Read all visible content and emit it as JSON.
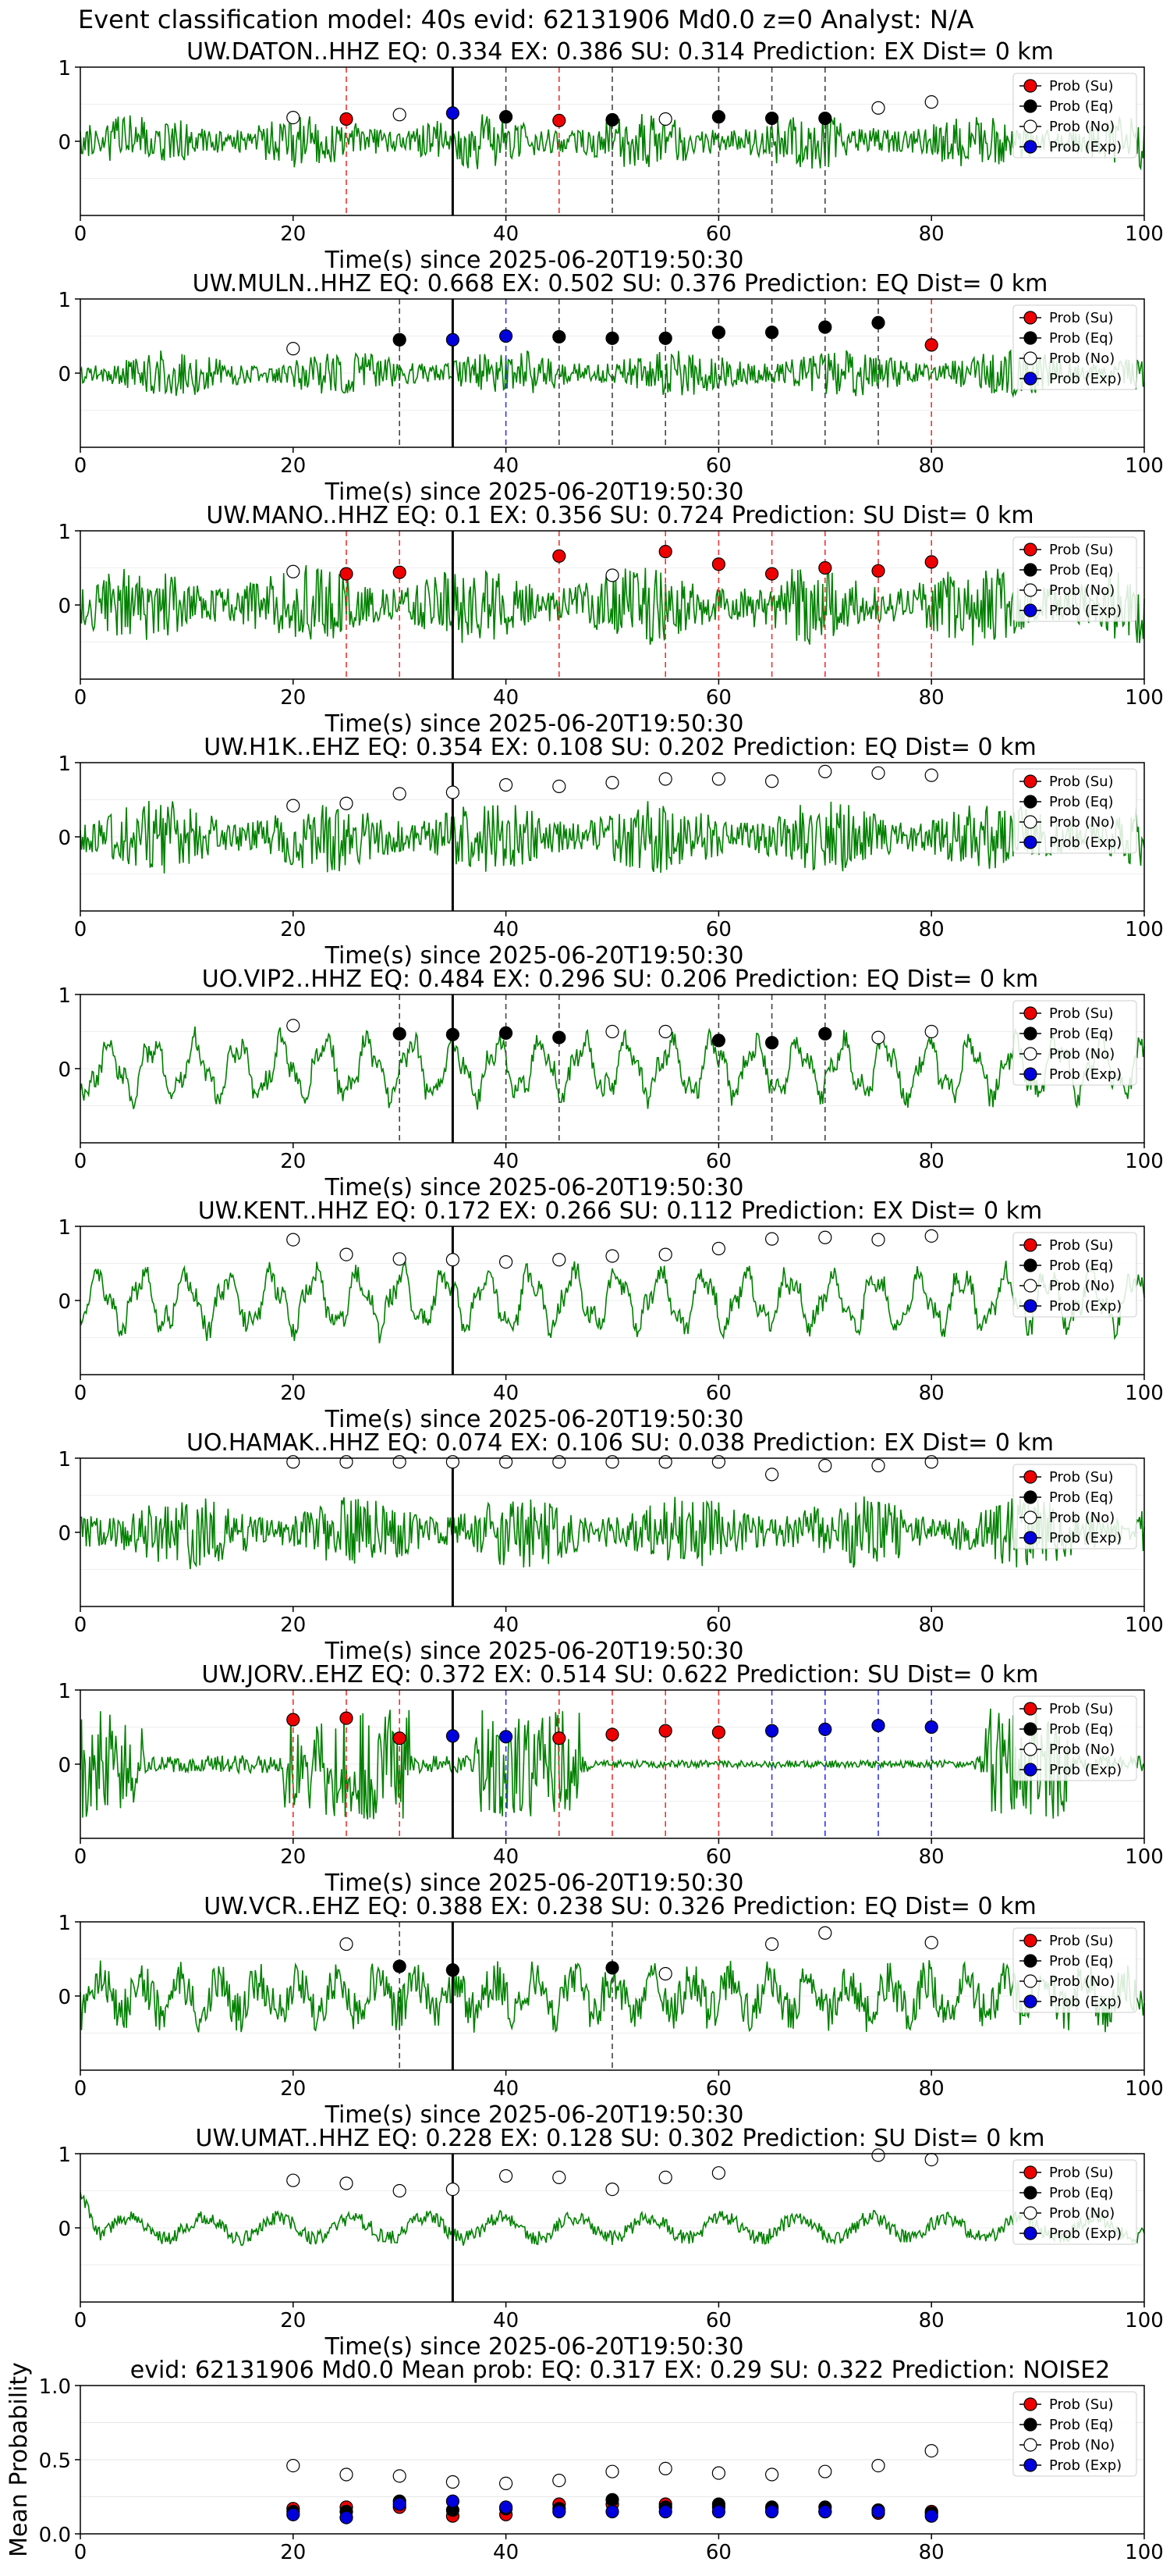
{
  "suptitle": "Event classification model: 40s evid: 62131906 Md0.0 z=0 Analyst: N/A",
  "colors": {
    "su": "#ee0000",
    "eq": "#000000",
    "no": "#ffffff",
    "exp": "#0000dd",
    "trace": "#008000",
    "hline": "#000000"
  },
  "legend_labels": [
    "Prob (Su)",
    "Prob (Eq)",
    "Prob (No)",
    "Prob (Exp)"
  ],
  "chart_data": [
    {
      "type": "line",
      "station": "UW.DATON..HHZ",
      "title": "UW.DATON..HHZ   EQ: 0.334  EX: 0.386  SU: 0.314   Prediction: EX    Dist= 0 km",
      "xlabel": "Time(s) since 2025-06-20T19:50:30",
      "xlim": [
        0,
        100
      ],
      "ylim": [
        -1,
        1
      ],
      "xticks": [
        "0",
        "20",
        "40",
        "60",
        "80",
        "100"
      ],
      "yticks": [
        "1",
        "0"
      ],
      "trace_style": "hf",
      "amp": 0.38,
      "seed": 11,
      "event_line": 35,
      "points": [
        {
          "t": 20,
          "p": 0.32,
          "c": "no"
        },
        {
          "t": 25,
          "p": 0.3,
          "c": "su"
        },
        {
          "t": 30,
          "p": 0.36,
          "c": "no"
        },
        {
          "t": 35,
          "p": 0.38,
          "c": "exp"
        },
        {
          "t": 40,
          "p": 0.33,
          "c": "eq"
        },
        {
          "t": 45,
          "p": 0.28,
          "c": "su"
        },
        {
          "t": 50,
          "p": 0.29,
          "c": "eq"
        },
        {
          "t": 55,
          "p": 0.3,
          "c": "no"
        },
        {
          "t": 60,
          "p": 0.33,
          "c": "eq"
        },
        {
          "t": 65,
          "p": 0.31,
          "c": "eq"
        },
        {
          "t": 70,
          "p": 0.31,
          "c": "eq"
        },
        {
          "t": 75,
          "p": 0.45,
          "c": "no"
        },
        {
          "t": 80,
          "p": 0.53,
          "c": "no"
        }
      ]
    },
    {
      "type": "line",
      "station": "UW.MULN..HHZ",
      "title": "UW.MULN..HHZ   EQ: 0.668  EX: 0.502  SU: 0.376   Prediction: EQ    Dist= 0 km",
      "xlabel": "Time(s) since 2025-06-20T19:50:30",
      "xlim": [
        0,
        100
      ],
      "ylim": [
        -1,
        1
      ],
      "xticks": [
        "0",
        "20",
        "40",
        "60",
        "80",
        "100"
      ],
      "yticks": [
        "1",
        "0"
      ],
      "trace_style": "hf",
      "amp": 0.32,
      "seed": 23,
      "event_line": 35,
      "points": [
        {
          "t": 20,
          "p": 0.33,
          "c": "no"
        },
        {
          "t": 30,
          "p": 0.45,
          "c": "eq"
        },
        {
          "t": 35,
          "p": 0.45,
          "c": "exp"
        },
        {
          "t": 40,
          "p": 0.5,
          "c": "exp"
        },
        {
          "t": 45,
          "p": 0.49,
          "c": "eq"
        },
        {
          "t": 50,
          "p": 0.47,
          "c": "eq"
        },
        {
          "t": 55,
          "p": 0.47,
          "c": "eq"
        },
        {
          "t": 60,
          "p": 0.55,
          "c": "eq"
        },
        {
          "t": 65,
          "p": 0.55,
          "c": "eq"
        },
        {
          "t": 70,
          "p": 0.62,
          "c": "eq"
        },
        {
          "t": 75,
          "p": 0.68,
          "c": "eq"
        },
        {
          "t": 80,
          "p": 0.38,
          "c": "su"
        }
      ]
    },
    {
      "type": "line",
      "station": "UW.MANO..HHZ",
      "title": "UW.MANO..HHZ   EQ: 0.1  EX: 0.356  SU: 0.724   Prediction: SU    Dist= 0 km",
      "xlabel": "Time(s) since 2025-06-20T19:50:30",
      "xlim": [
        0,
        100
      ],
      "ylim": [
        -1,
        1
      ],
      "xticks": [
        "0",
        "20",
        "40",
        "60",
        "80",
        "100"
      ],
      "yticks": [
        "1",
        "0"
      ],
      "trace_style": "hf",
      "amp": 0.55,
      "seed": 37,
      "event_line": 35,
      "points": [
        {
          "t": 20,
          "p": 0.45,
          "c": "no"
        },
        {
          "t": 25,
          "p": 0.42,
          "c": "su"
        },
        {
          "t": 30,
          "p": 0.44,
          "c": "su"
        },
        {
          "t": 45,
          "p": 0.66,
          "c": "su"
        },
        {
          "t": 50,
          "p": 0.4,
          "c": "no"
        },
        {
          "t": 55,
          "p": 0.72,
          "c": "su"
        },
        {
          "t": 60,
          "p": 0.55,
          "c": "su"
        },
        {
          "t": 65,
          "p": 0.42,
          "c": "su"
        },
        {
          "t": 70,
          "p": 0.5,
          "c": "su"
        },
        {
          "t": 75,
          "p": 0.46,
          "c": "su"
        },
        {
          "t": 80,
          "p": 0.58,
          "c": "su"
        }
      ]
    },
    {
      "type": "line",
      "station": "UW.H1K..EHZ",
      "title": "UW.H1K..EHZ   EQ: 0.354  EX: 0.108  SU: 0.202   Prediction: EQ    Dist= 0 km",
      "xlabel": "Time(s) since 2025-06-20T19:50:30",
      "xlim": [
        0,
        100
      ],
      "ylim": [
        -1,
        1
      ],
      "xticks": [
        "0",
        "20",
        "40",
        "60",
        "80",
        "100"
      ],
      "yticks": [
        "1",
        "0"
      ],
      "trace_style": "hf",
      "amp": 0.5,
      "seed": 41,
      "event_line": 35,
      "points": [
        {
          "t": 20,
          "p": 0.42,
          "c": "no"
        },
        {
          "t": 25,
          "p": 0.45,
          "c": "no"
        },
        {
          "t": 30,
          "p": 0.58,
          "c": "no"
        },
        {
          "t": 35,
          "p": 0.6,
          "c": "no"
        },
        {
          "t": 40,
          "p": 0.7,
          "c": "no"
        },
        {
          "t": 45,
          "p": 0.68,
          "c": "no"
        },
        {
          "t": 50,
          "p": 0.73,
          "c": "no"
        },
        {
          "t": 55,
          "p": 0.78,
          "c": "no"
        },
        {
          "t": 60,
          "p": 0.78,
          "c": "no"
        },
        {
          "t": 65,
          "p": 0.75,
          "c": "no"
        },
        {
          "t": 70,
          "p": 0.88,
          "c": "no"
        },
        {
          "t": 75,
          "p": 0.86,
          "c": "no"
        },
        {
          "t": 80,
          "p": 0.83,
          "c": "no"
        }
      ]
    },
    {
      "type": "line",
      "station": "UO.VIP2..HHZ",
      "title": "UO.VIP2..HHZ   EQ: 0.484  EX: 0.296  SU: 0.206   Prediction: EQ    Dist= 0 km",
      "xlabel": "Time(s) since 2025-06-20T19:50:30",
      "xlim": [
        0,
        100
      ],
      "ylim": [
        -1,
        1
      ],
      "xticks": [
        "0",
        "20",
        "40",
        "60",
        "80",
        "100"
      ],
      "yticks": [
        "1",
        "0"
      ],
      "trace_style": "lf",
      "amp": 0.55,
      "seed": 53,
      "event_line": 35,
      "points": [
        {
          "t": 20,
          "p": 0.58,
          "c": "no"
        },
        {
          "t": 30,
          "p": 0.47,
          "c": "eq"
        },
        {
          "t": 35,
          "p": 0.46,
          "c": "eq"
        },
        {
          "t": 40,
          "p": 0.48,
          "c": "eq"
        },
        {
          "t": 45,
          "p": 0.42,
          "c": "eq"
        },
        {
          "t": 50,
          "p": 0.5,
          "c": "no"
        },
        {
          "t": 55,
          "p": 0.5,
          "c": "no"
        },
        {
          "t": 60,
          "p": 0.38,
          "c": "eq"
        },
        {
          "t": 65,
          "p": 0.35,
          "c": "eq"
        },
        {
          "t": 70,
          "p": 0.47,
          "c": "eq"
        },
        {
          "t": 75,
          "p": 0.42,
          "c": "no"
        },
        {
          "t": 80,
          "p": 0.5,
          "c": "no"
        }
      ]
    },
    {
      "type": "line",
      "station": "UW.KENT..HHZ",
      "title": "UW.KENT..HHZ   EQ: 0.172  EX: 0.266  SU: 0.112   Prediction: EX    Dist= 0 km",
      "xlabel": "Time(s) since 2025-06-20T19:50:30",
      "xlim": [
        0,
        100
      ],
      "ylim": [
        -1,
        1
      ],
      "xticks": [
        "0",
        "20",
        "40",
        "60",
        "80",
        "100"
      ],
      "yticks": [
        "1",
        "0"
      ],
      "trace_style": "lf",
      "amp": 0.55,
      "seed": 67,
      "event_line": 35,
      "points": [
        {
          "t": 20,
          "p": 0.82,
          "c": "no"
        },
        {
          "t": 25,
          "p": 0.62,
          "c": "no"
        },
        {
          "t": 30,
          "p": 0.56,
          "c": "no"
        },
        {
          "t": 35,
          "p": 0.55,
          "c": "no"
        },
        {
          "t": 40,
          "p": 0.52,
          "c": "no"
        },
        {
          "t": 45,
          "p": 0.55,
          "c": "no"
        },
        {
          "t": 50,
          "p": 0.6,
          "c": "no"
        },
        {
          "t": 55,
          "p": 0.62,
          "c": "no"
        },
        {
          "t": 60,
          "p": 0.7,
          "c": "no"
        },
        {
          "t": 65,
          "p": 0.83,
          "c": "no"
        },
        {
          "t": 70,
          "p": 0.85,
          "c": "no"
        },
        {
          "t": 75,
          "p": 0.82,
          "c": "no"
        },
        {
          "t": 80,
          "p": 0.87,
          "c": "no"
        }
      ]
    },
    {
      "type": "line",
      "station": "UO.HAMAK..HHZ",
      "title": "UO.HAMAK..HHZ   EQ: 0.074  EX: 0.106  SU: 0.038   Prediction: EX    Dist= 0 km",
      "xlabel": "Time(s) since 2025-06-20T19:50:30",
      "xlim": [
        0,
        100
      ],
      "ylim": [
        -1,
        1
      ],
      "xticks": [
        "0",
        "20",
        "40",
        "60",
        "80",
        "100"
      ],
      "yticks": [
        "1",
        "0"
      ],
      "trace_style": "hf",
      "amp": 0.5,
      "seed": 79,
      "event_line": 35,
      "points": [
        {
          "t": 20,
          "p": 0.95,
          "c": "no"
        },
        {
          "t": 25,
          "p": 0.95,
          "c": "no"
        },
        {
          "t": 30,
          "p": 0.95,
          "c": "no"
        },
        {
          "t": 35,
          "p": 0.95,
          "c": "no"
        },
        {
          "t": 40,
          "p": 0.95,
          "c": "no"
        },
        {
          "t": 45,
          "p": 0.95,
          "c": "no"
        },
        {
          "t": 50,
          "p": 0.95,
          "c": "no"
        },
        {
          "t": 55,
          "p": 0.95,
          "c": "no"
        },
        {
          "t": 60,
          "p": 0.95,
          "c": "no"
        },
        {
          "t": 65,
          "p": 0.78,
          "c": "no"
        },
        {
          "t": 70,
          "p": 0.9,
          "c": "no"
        },
        {
          "t": 75,
          "p": 0.9,
          "c": "no"
        },
        {
          "t": 80,
          "p": 0.95,
          "c": "no"
        }
      ]
    },
    {
      "type": "line",
      "station": "UW.JORV..EHZ",
      "title": "UW.JORV..EHZ   EQ: 0.372  EX: 0.514  SU: 0.622   Prediction: SU    Dist= 0 km",
      "xlabel": "Time(s) since 2025-06-20T19:50:30",
      "xlim": [
        0,
        100
      ],
      "ylim": [
        -1,
        1
      ],
      "xticks": [
        "0",
        "20",
        "40",
        "60",
        "80",
        "100"
      ],
      "yticks": [
        "1",
        "0"
      ],
      "trace_style": "burst",
      "amp": 0.6,
      "seed": 83,
      "event_line": 35,
      "points": [
        {
          "t": 20,
          "p": 0.6,
          "c": "su"
        },
        {
          "t": 25,
          "p": 0.62,
          "c": "su"
        },
        {
          "t": 30,
          "p": 0.35,
          "c": "su"
        },
        {
          "t": 35,
          "p": 0.38,
          "c": "exp"
        },
        {
          "t": 40,
          "p": 0.37,
          "c": "exp"
        },
        {
          "t": 45,
          "p": 0.35,
          "c": "su"
        },
        {
          "t": 50,
          "p": 0.4,
          "c": "su"
        },
        {
          "t": 55,
          "p": 0.45,
          "c": "su"
        },
        {
          "t": 60,
          "p": 0.43,
          "c": "su"
        },
        {
          "t": 65,
          "p": 0.45,
          "c": "exp"
        },
        {
          "t": 70,
          "p": 0.47,
          "c": "exp"
        },
        {
          "t": 75,
          "p": 0.52,
          "c": "exp"
        },
        {
          "t": 80,
          "p": 0.5,
          "c": "exp"
        }
      ]
    },
    {
      "type": "line",
      "station": "UW.VCR..EHZ",
      "title": "UW.VCR..EHZ   EQ: 0.388  EX: 0.238  SU: 0.326   Prediction: EQ    Dist= 0 km",
      "xlabel": "Time(s) since 2025-06-20T19:50:30",
      "xlim": [
        0,
        100
      ],
      "ylim": [
        -1,
        1
      ],
      "xticks": [
        "0",
        "20",
        "40",
        "60",
        "80",
        "100"
      ],
      "yticks": [
        "1",
        "0"
      ],
      "trace_style": "mixed",
      "amp": 0.45,
      "seed": 97,
      "event_line": 35,
      "points": [
        {
          "t": 25,
          "p": 0.7,
          "c": "no"
        },
        {
          "t": 30,
          "p": 0.4,
          "c": "eq"
        },
        {
          "t": 35,
          "p": 0.35,
          "c": "eq"
        },
        {
          "t": 50,
          "p": 0.38,
          "c": "eq"
        },
        {
          "t": 55,
          "p": 0.3,
          "c": "no"
        },
        {
          "t": 65,
          "p": 0.7,
          "c": "no"
        },
        {
          "t": 70,
          "p": 0.85,
          "c": "no"
        },
        {
          "t": 80,
          "p": 0.72,
          "c": "no"
        }
      ]
    },
    {
      "type": "line",
      "station": "UW.UMAT..HHZ",
      "title": "UW.UMAT..HHZ   EQ: 0.228  EX: 0.128  SU: 0.302   Prediction: SU    Dist= 0 km",
      "xlabel": "Time(s) since 2025-06-20T19:50:30",
      "xlim": [
        0,
        100
      ],
      "ylim": [
        -1,
        1
      ],
      "xticks": [
        "0",
        "20",
        "40",
        "60",
        "80",
        "100"
      ],
      "yticks": [
        "1",
        "0"
      ],
      "trace_style": "quiet",
      "amp": 0.16,
      "seed": 101,
      "event_line": 35,
      "points": [
        {
          "t": 20,
          "p": 0.64,
          "c": "no"
        },
        {
          "t": 25,
          "p": 0.6,
          "c": "no"
        },
        {
          "t": 30,
          "p": 0.5,
          "c": "no"
        },
        {
          "t": 35,
          "p": 0.52,
          "c": "no"
        },
        {
          "t": 40,
          "p": 0.7,
          "c": "no"
        },
        {
          "t": 45,
          "p": 0.68,
          "c": "no"
        },
        {
          "t": 50,
          "p": 0.52,
          "c": "no"
        },
        {
          "t": 55,
          "p": 0.68,
          "c": "no"
        },
        {
          "t": 60,
          "p": 0.74,
          "c": "no"
        },
        {
          "t": 75,
          "p": 0.98,
          "c": "no"
        },
        {
          "t": 80,
          "p": 0.92,
          "c": "no"
        }
      ]
    },
    {
      "type": "scatter",
      "title": "evid: 62131906  Md0.0   Mean prob:   EQ: 0.317  EX: 0.29  SU: 0.322   Prediction: NOISE2",
      "ylabel": "Mean Probability",
      "xlim": [
        0,
        100
      ],
      "ylim": [
        0,
        1
      ],
      "xticks": [
        "0",
        "20",
        "40",
        "60",
        "80",
        "100"
      ],
      "yticks": [
        "1.0",
        "0.5",
        "0.0"
      ],
      "x": [
        20,
        25,
        30,
        35,
        40,
        45,
        50,
        55,
        60,
        65,
        70,
        75,
        80
      ],
      "series": [
        {
          "name": "Prob (Su)",
          "key": "su",
          "values": [
            0.17,
            0.18,
            0.18,
            0.12,
            0.13,
            0.2,
            0.2,
            0.2,
            0.18,
            0.17,
            0.15,
            0.14,
            0.15
          ]
        },
        {
          "name": "Prob (Eq)",
          "key": "eq",
          "values": [
            0.15,
            0.15,
            0.22,
            0.16,
            0.17,
            0.17,
            0.23,
            0.18,
            0.2,
            0.18,
            0.18,
            0.16,
            0.14
          ]
        },
        {
          "name": "Prob (No)",
          "key": "no",
          "values": [
            0.46,
            0.4,
            0.39,
            0.35,
            0.34,
            0.36,
            0.42,
            0.44,
            0.41,
            0.4,
            0.42,
            0.46,
            0.56
          ]
        },
        {
          "name": "Prob (Exp)",
          "key": "exp",
          "values": [
            0.13,
            0.11,
            0.2,
            0.22,
            0.18,
            0.15,
            0.15,
            0.15,
            0.15,
            0.15,
            0.15,
            0.15,
            0.12
          ]
        }
      ]
    }
  ]
}
